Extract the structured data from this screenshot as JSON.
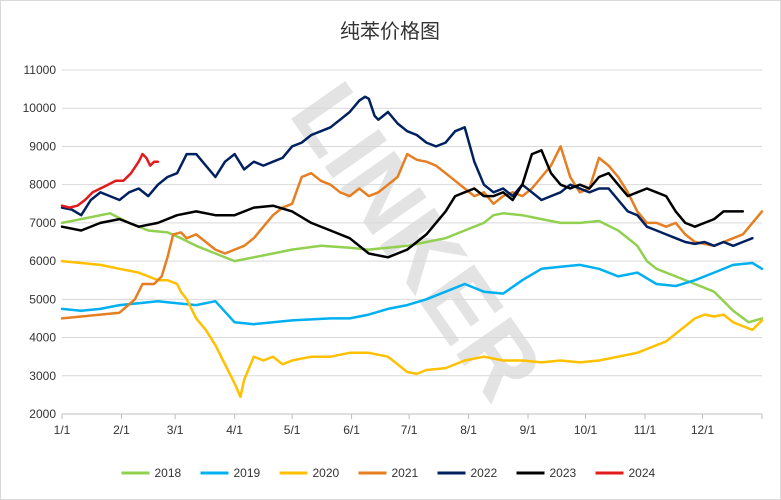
{
  "chart_data": {
    "type": "line",
    "title": "纯苯价格图",
    "watermark": "LINKER",
    "xlabel": "",
    "ylabel": "",
    "ylim": [
      2000,
      11000
    ],
    "yticks": [
      2000,
      3000,
      4000,
      5000,
      6000,
      7000,
      8000,
      9000,
      10000,
      11000
    ],
    "xlim": [
      0,
      365
    ],
    "x_tick_labels": [
      "1/1",
      "2/1",
      "3/1",
      "4/1",
      "5/1",
      "6/1",
      "7/1",
      "8/1",
      "9/1",
      "10/1",
      "11/1",
      "12/1"
    ],
    "x_tick_days": [
      0,
      31,
      59,
      90,
      120,
      151,
      181,
      212,
      243,
      273,
      304,
      334
    ],
    "legend_position": "bottom",
    "series": [
      {
        "name": "2018",
        "color": "#92d050",
        "x": [
          0,
          10,
          25,
          35,
          45,
          55,
          62,
          70,
          80,
          90,
          100,
          110,
          120,
          135,
          150,
          160,
          170,
          180,
          190,
          200,
          210,
          220,
          225,
          230,
          240,
          250,
          260,
          270,
          280,
          290,
          300,
          305,
          310,
          320,
          330,
          340,
          350,
          358,
          365
        ],
        "values": [
          7000,
          7100,
          7250,
          7000,
          6800,
          6750,
          6600,
          6400,
          6200,
          6000,
          6100,
          6200,
          6300,
          6400,
          6350,
          6300,
          6350,
          6400,
          6500,
          6600,
          6800,
          7000,
          7200,
          7250,
          7200,
          7100,
          7000,
          7000,
          7050,
          6800,
          6400,
          6000,
          5800,
          5600,
          5400,
          5200,
          4700,
          4400,
          4500
        ]
      },
      {
        "name": "2019",
        "color": "#00b0f0",
        "x": [
          0,
          10,
          20,
          30,
          40,
          50,
          60,
          70,
          80,
          90,
          100,
          120,
          140,
          150,
          160,
          170,
          180,
          190,
          200,
          210,
          220,
          230,
          240,
          250,
          260,
          270,
          280,
          290,
          300,
          310,
          320,
          330,
          340,
          350,
          360,
          365
        ],
        "values": [
          4750,
          4700,
          4750,
          4850,
          4900,
          4950,
          4900,
          4850,
          4950,
          4400,
          4350,
          4450,
          4500,
          4500,
          4600,
          4750,
          4850,
          5000,
          5200,
          5400,
          5200,
          5150,
          5500,
          5800,
          5850,
          5900,
          5800,
          5600,
          5700,
          5400,
          5350,
          5500,
          5700,
          5900,
          5950,
          5800
        ]
      },
      {
        "name": "2020",
        "color": "#ffc000",
        "x": [
          0,
          10,
          20,
          30,
          40,
          50,
          55,
          60,
          62,
          65,
          70,
          75,
          80,
          85,
          88,
          90,
          93,
          95,
          100,
          105,
          110,
          115,
          120,
          130,
          140,
          150,
          160,
          170,
          180,
          185,
          190,
          200,
          210,
          220,
          230,
          240,
          250,
          260,
          270,
          280,
          290,
          300,
          305,
          310,
          315,
          320,
          325,
          330,
          335,
          340,
          345,
          350,
          355,
          360,
          365
        ],
        "values": [
          6000,
          5950,
          5900,
          5800,
          5700,
          5500,
          5500,
          5400,
          5200,
          5000,
          4500,
          4200,
          3800,
          3300,
          3000,
          2800,
          2450,
          2900,
          3500,
          3400,
          3500,
          3300,
          3400,
          3500,
          3500,
          3600,
          3600,
          3500,
          3100,
          3050,
          3150,
          3200,
          3400,
          3500,
          3400,
          3400,
          3350,
          3400,
          3350,
          3400,
          3500,
          3600,
          3700,
          3800,
          3900,
          4100,
          4300,
          4500,
          4600,
          4550,
          4600,
          4400,
          4300,
          4200,
          4450
        ]
      },
      {
        "name": "2021",
        "color": "#e67e22",
        "x": [
          0,
          10,
          20,
          30,
          38,
          42,
          45,
          48,
          52,
          55,
          58,
          62,
          65,
          70,
          75,
          80,
          85,
          90,
          95,
          100,
          105,
          110,
          115,
          120,
          125,
          130,
          135,
          140,
          145,
          150,
          155,
          160,
          165,
          170,
          175,
          180,
          185,
          190,
          195,
          200,
          205,
          210,
          215,
          220,
          225,
          230,
          235,
          240,
          245,
          250,
          255,
          260,
          265,
          270,
          275,
          280,
          285,
          290,
          295,
          300,
          305,
          310,
          315,
          320,
          325,
          330,
          335,
          340,
          345,
          350,
          355,
          360,
          365
        ],
        "values": [
          4500,
          4550,
          4600,
          4650,
          5000,
          5400,
          5400,
          5400,
          5600,
          6100,
          6700,
          6750,
          6600,
          6700,
          6500,
          6300,
          6200,
          6300,
          6400,
          6600,
          6900,
          7200,
          7400,
          7500,
          8200,
          8300,
          8100,
          8000,
          7800,
          7700,
          7900,
          7700,
          7800,
          8000,
          8200,
          8800,
          8650,
          8600,
          8500,
          8300,
          8100,
          7900,
          7700,
          7800,
          7500,
          7700,
          7800,
          7700,
          7900,
          8200,
          8500,
          9000,
          8200,
          7800,
          7900,
          8700,
          8500,
          8200,
          7800,
          7300,
          7000,
          7000,
          6900,
          7000,
          6700,
          6500,
          6450,
          6400,
          6500,
          6600,
          6700,
          7000,
          7300
        ]
      },
      {
        "name": "2022",
        "color": "#002060",
        "x": [
          0,
          5,
          10,
          15,
          20,
          25,
          30,
          35,
          40,
          45,
          50,
          55,
          60,
          65,
          70,
          75,
          80,
          85,
          90,
          95,
          100,
          105,
          110,
          115,
          120,
          125,
          130,
          135,
          140,
          145,
          150,
          155,
          158,
          160,
          163,
          165,
          170,
          175,
          180,
          185,
          190,
          195,
          200,
          205,
          210,
          215,
          220,
          225,
          230,
          235,
          240,
          245,
          250,
          255,
          260,
          265,
          270,
          275,
          280,
          285,
          290,
          295,
          300,
          305,
          310,
          315,
          320,
          325,
          330,
          335,
          340,
          345,
          350,
          355,
          360
        ],
        "values": [
          7400,
          7350,
          7200,
          7600,
          7800,
          7700,
          7600,
          7800,
          7900,
          7700,
          8000,
          8200,
          8300,
          8800,
          8800,
          8500,
          8200,
          8600,
          8800,
          8400,
          8600,
          8500,
          8600,
          8700,
          9000,
          9100,
          9300,
          9400,
          9500,
          9700,
          9900,
          10200,
          10300,
          10250,
          9800,
          9700,
          9900,
          9600,
          9400,
          9300,
          9100,
          9000,
          9100,
          9400,
          9500,
          8600,
          8000,
          7800,
          7900,
          7700,
          8000,
          7800,
          7600,
          7700,
          7800,
          8000,
          7900,
          7800,
          7900,
          7900,
          7600,
          7300,
          7200,
          6900,
          6800,
          6700,
          6600,
          6500,
          6450,
          6500,
          6400,
          6500,
          6400,
          6500,
          6600
        ]
      },
      {
        "name": "2023",
        "color": "#000000",
        "x": [
          0,
          10,
          20,
          30,
          40,
          50,
          60,
          70,
          80,
          90,
          100,
          110,
          120,
          130,
          140,
          150,
          160,
          170,
          180,
          190,
          200,
          205,
          210,
          215,
          220,
          225,
          230,
          235,
          240,
          245,
          250,
          255,
          260,
          265,
          270,
          275,
          280,
          285,
          290,
          295,
          300,
          305,
          310,
          315,
          320,
          325,
          330,
          335,
          340,
          345,
          350,
          355
        ],
        "values": [
          6900,
          6800,
          7000,
          7100,
          6900,
          7000,
          7200,
          7300,
          7200,
          7200,
          7400,
          7450,
          7300,
          7000,
          6800,
          6600,
          6200,
          6100,
          6300,
          6700,
          7300,
          7700,
          7800,
          7900,
          7700,
          7700,
          7800,
          7600,
          8000,
          8800,
          8900,
          8300,
          8000,
          7900,
          8000,
          7900,
          8200,
          8300,
          8000,
          7700,
          7800,
          7900,
          7800,
          7700,
          7300,
          7000,
          6900,
          7000,
          7100,
          7300,
          7300,
          7300
        ]
      },
      {
        "name": "2024",
        "color": "#e31a1c",
        "x": [
          0,
          4,
          8,
          12,
          16,
          20,
          24,
          28,
          32,
          36,
          40,
          42,
          44,
          46,
          48,
          50
        ],
        "values": [
          7450,
          7400,
          7450,
          7600,
          7800,
          7900,
          8000,
          8100,
          8100,
          8300,
          8600,
          8800,
          8700,
          8500,
          8600,
          8600
        ]
      }
    ]
  }
}
